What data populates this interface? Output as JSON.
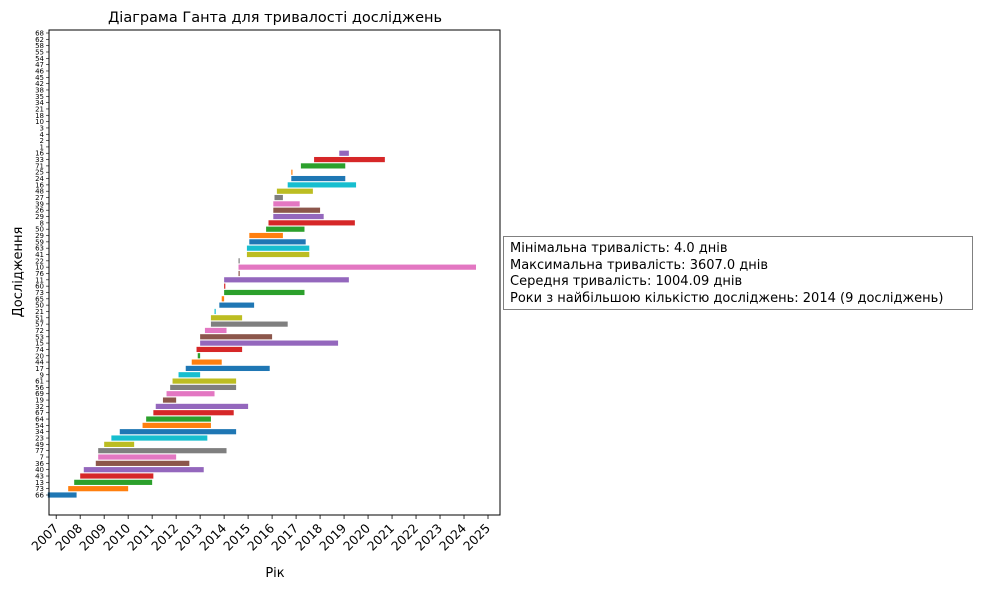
{
  "chart_data": {
    "type": "gantt",
    "title": "Діаграма Ганта для тривалості досліджень",
    "xlabel": "Рік",
    "ylabel": "Дослідження",
    "xlim": [
      2006.7,
      2025.5
    ],
    "x_ticks": [
      "2007",
      "2008",
      "2009",
      "2010",
      "2011",
      "2012",
      "2013",
      "2014",
      "2015",
      "2016",
      "2017",
      "2018",
      "2019",
      "2020",
      "2021",
      "2022",
      "2023",
      "2024",
      "2025"
    ],
    "grid": false,
    "bars": [
      {
        "label": "66",
        "start": 2006.65,
        "end": 2007.85,
        "color": "#1f77b4"
      },
      {
        "label": "73",
        "start": 2007.5,
        "end": 2010.0,
        "color": "#ff7f0e"
      },
      {
        "label": "13",
        "start": 2007.75,
        "end": 2011.0,
        "color": "#2ca02c"
      },
      {
        "label": "43",
        "start": 2008.0,
        "end": 2011.05,
        "color": "#d62728"
      },
      {
        "label": "40",
        "start": 2008.15,
        "end": 2013.15,
        "color": "#9467bd"
      },
      {
        "label": "36",
        "start": 2008.65,
        "end": 2012.55,
        "color": "#8c564b"
      },
      {
        "label": "7",
        "start": 2008.75,
        "end": 2012.0,
        "color": "#e377c2"
      },
      {
        "label": "77",
        "start": 2008.75,
        "end": 2014.1,
        "color": "#7f7f7f"
      },
      {
        "label": "49",
        "start": 2009.0,
        "end": 2010.25,
        "color": "#bcbd22"
      },
      {
        "label": "23",
        "start": 2009.3,
        "end": 2013.3,
        "color": "#17becf"
      },
      {
        "label": "34",
        "start": 2009.65,
        "end": 2014.5,
        "color": "#1f77b4"
      },
      {
        "label": "54",
        "start": 2010.6,
        "end": 2013.45,
        "color": "#ff7f0e"
      },
      {
        "label": "64",
        "start": 2010.75,
        "end": 2013.45,
        "color": "#2ca02c"
      },
      {
        "label": "67",
        "start": 2011.05,
        "end": 2014.4,
        "color": "#d62728"
      },
      {
        "label": "32",
        "start": 2011.15,
        "end": 2015.0,
        "color": "#9467bd"
      },
      {
        "label": "19",
        "start": 2011.45,
        "end": 2012.0,
        "color": "#8c564b"
      },
      {
        "label": "69",
        "start": 2011.6,
        "end": 2013.6,
        "color": "#e377c2"
      },
      {
        "label": "56",
        "start": 2011.75,
        "end": 2014.5,
        "color": "#7f7f7f"
      },
      {
        "label": "61",
        "start": 2011.85,
        "end": 2014.5,
        "color": "#bcbd22"
      },
      {
        "label": "9",
        "start": 2012.1,
        "end": 2013.0,
        "color": "#17becf"
      },
      {
        "label": "17",
        "start": 2012.4,
        "end": 2015.9,
        "color": "#1f77b4"
      },
      {
        "label": "44",
        "start": 2012.65,
        "end": 2013.9,
        "color": "#ff7f0e"
      },
      {
        "label": "20",
        "start": 2012.9,
        "end": 2013.0,
        "color": "#2ca02c"
      },
      {
        "label": "74",
        "start": 2012.85,
        "end": 2014.75,
        "color": "#d62728"
      },
      {
        "label": "15",
        "start": 2013.0,
        "end": 2018.75,
        "color": "#9467bd"
      },
      {
        "label": "53",
        "start": 2013.0,
        "end": 2016.0,
        "color": "#8c564b"
      },
      {
        "label": "72",
        "start": 2013.2,
        "end": 2014.1,
        "color": "#e377c2"
      },
      {
        "label": "57",
        "start": 2013.45,
        "end": 2016.65,
        "color": "#7f7f7f"
      },
      {
        "label": "51",
        "start": 2013.45,
        "end": 2014.75,
        "color": "#bcbd22"
      },
      {
        "label": "21",
        "start": 2013.6,
        "end": 2013.65,
        "color": "#17becf"
      },
      {
        "label": "50",
        "start": 2013.8,
        "end": 2015.25,
        "color": "#1f77b4"
      },
      {
        "label": "65",
        "start": 2013.9,
        "end": 2014.0,
        "color": "#ff7f0e"
      },
      {
        "label": "73",
        "start": 2014.0,
        "end": 2017.35,
        "color": "#2ca02c"
      },
      {
        "label": "60",
        "start": 2014.0,
        "end": 2014.05,
        "color": "#d62728"
      },
      {
        "label": "11",
        "start": 2014.0,
        "end": 2019.2,
        "color": "#9467bd"
      },
      {
        "label": "76",
        "start": 2014.6,
        "end": 2014.65,
        "color": "#8c564b"
      },
      {
        "label": "10",
        "start": 2014.6,
        "end": 2024.5,
        "color": "#e377c2"
      },
      {
        "label": "22",
        "start": 2014.6,
        "end": 2014.65,
        "color": "#7f7f7f"
      },
      {
        "label": "41",
        "start": 2014.95,
        "end": 2017.55,
        "color": "#bcbd22"
      },
      {
        "label": "63",
        "start": 2014.95,
        "end": 2017.55,
        "color": "#17becf"
      },
      {
        "label": "59",
        "start": 2015.05,
        "end": 2017.4,
        "color": "#1f77b4"
      },
      {
        "label": "29",
        "start": 2015.05,
        "end": 2016.45,
        "color": "#ff7f0e"
      },
      {
        "label": "50",
        "start": 2015.75,
        "end": 2017.35,
        "color": "#2ca02c"
      },
      {
        "label": "8",
        "start": 2015.85,
        "end": 2019.45,
        "color": "#d62728"
      },
      {
        "label": "29",
        "start": 2016.05,
        "end": 2018.15,
        "color": "#9467bd"
      },
      {
        "label": "26",
        "start": 2016.05,
        "end": 2018.0,
        "color": "#8c564b"
      },
      {
        "label": "39",
        "start": 2016.05,
        "end": 2017.15,
        "color": "#e377c2"
      },
      {
        "label": "27",
        "start": 2016.1,
        "end": 2016.45,
        "color": "#7f7f7f"
      },
      {
        "label": "48",
        "start": 2016.2,
        "end": 2017.7,
        "color": "#bcbd22"
      },
      {
        "label": "16",
        "start": 2016.65,
        "end": 2019.5,
        "color": "#17becf"
      },
      {
        "label": "24",
        "start": 2016.8,
        "end": 2019.05,
        "color": "#1f77b4"
      },
      {
        "label": "25",
        "start": 2016.8,
        "end": 2016.85,
        "color": "#ff7f0e"
      },
      {
        "label": "71",
        "start": 2017.2,
        "end": 2019.05,
        "color": "#2ca02c"
      },
      {
        "label": "33",
        "start": 2017.75,
        "end": 2020.7,
        "color": "#d62728"
      },
      {
        "label": "16",
        "start": 2018.8,
        "end": 2019.2,
        "color": "#9467bd"
      },
      {
        "label": "1",
        "start": 0,
        "end": 0,
        "color": "#8c564b"
      },
      {
        "label": "2",
        "start": 0,
        "end": 0,
        "color": "#e377c2"
      },
      {
        "label": "4",
        "start": 0,
        "end": 0,
        "color": "#7f7f7f"
      },
      {
        "label": "3",
        "start": 0,
        "end": 0,
        "color": "#bcbd22"
      },
      {
        "label": "10",
        "start": 0,
        "end": 0,
        "color": "#17becf"
      },
      {
        "label": "18",
        "start": 0,
        "end": 0,
        "color": "#1f77b4"
      },
      {
        "label": "21",
        "start": 0,
        "end": 0,
        "color": "#ff7f0e"
      },
      {
        "label": "34",
        "start": 0,
        "end": 0,
        "color": "#2ca02c"
      },
      {
        "label": "35",
        "start": 0,
        "end": 0,
        "color": "#d62728"
      },
      {
        "label": "38",
        "start": 0,
        "end": 0,
        "color": "#9467bd"
      },
      {
        "label": "42",
        "start": 0,
        "end": 0,
        "color": "#8c564b"
      },
      {
        "label": "45",
        "start": 0,
        "end": 0,
        "color": "#e377c2"
      },
      {
        "label": "46",
        "start": 0,
        "end": 0,
        "color": "#7f7f7f"
      },
      {
        "label": "47",
        "start": 0,
        "end": 0,
        "color": "#bcbd22"
      },
      {
        "label": "54",
        "start": 0,
        "end": 0,
        "color": "#17becf"
      },
      {
        "label": "55",
        "start": 0,
        "end": 0,
        "color": "#1f77b4"
      },
      {
        "label": "58",
        "start": 0,
        "end": 0,
        "color": "#ff7f0e"
      },
      {
        "label": "62",
        "start": 0,
        "end": 0,
        "color": "#2ca02c"
      },
      {
        "label": "68",
        "start": 0,
        "end": 0,
        "color": "#d62728"
      }
    ]
  },
  "stats": {
    "min_duration": "Мінімальна тривалість: 4.0 днів",
    "max_duration": "Максимальна тривалість: 3607.0 днів",
    "mean_duration": "Середня тривалість: 1004.09 днів",
    "top_years": "Роки з найбільшою кількістю досліджень: 2014 (9 досліджень)"
  }
}
